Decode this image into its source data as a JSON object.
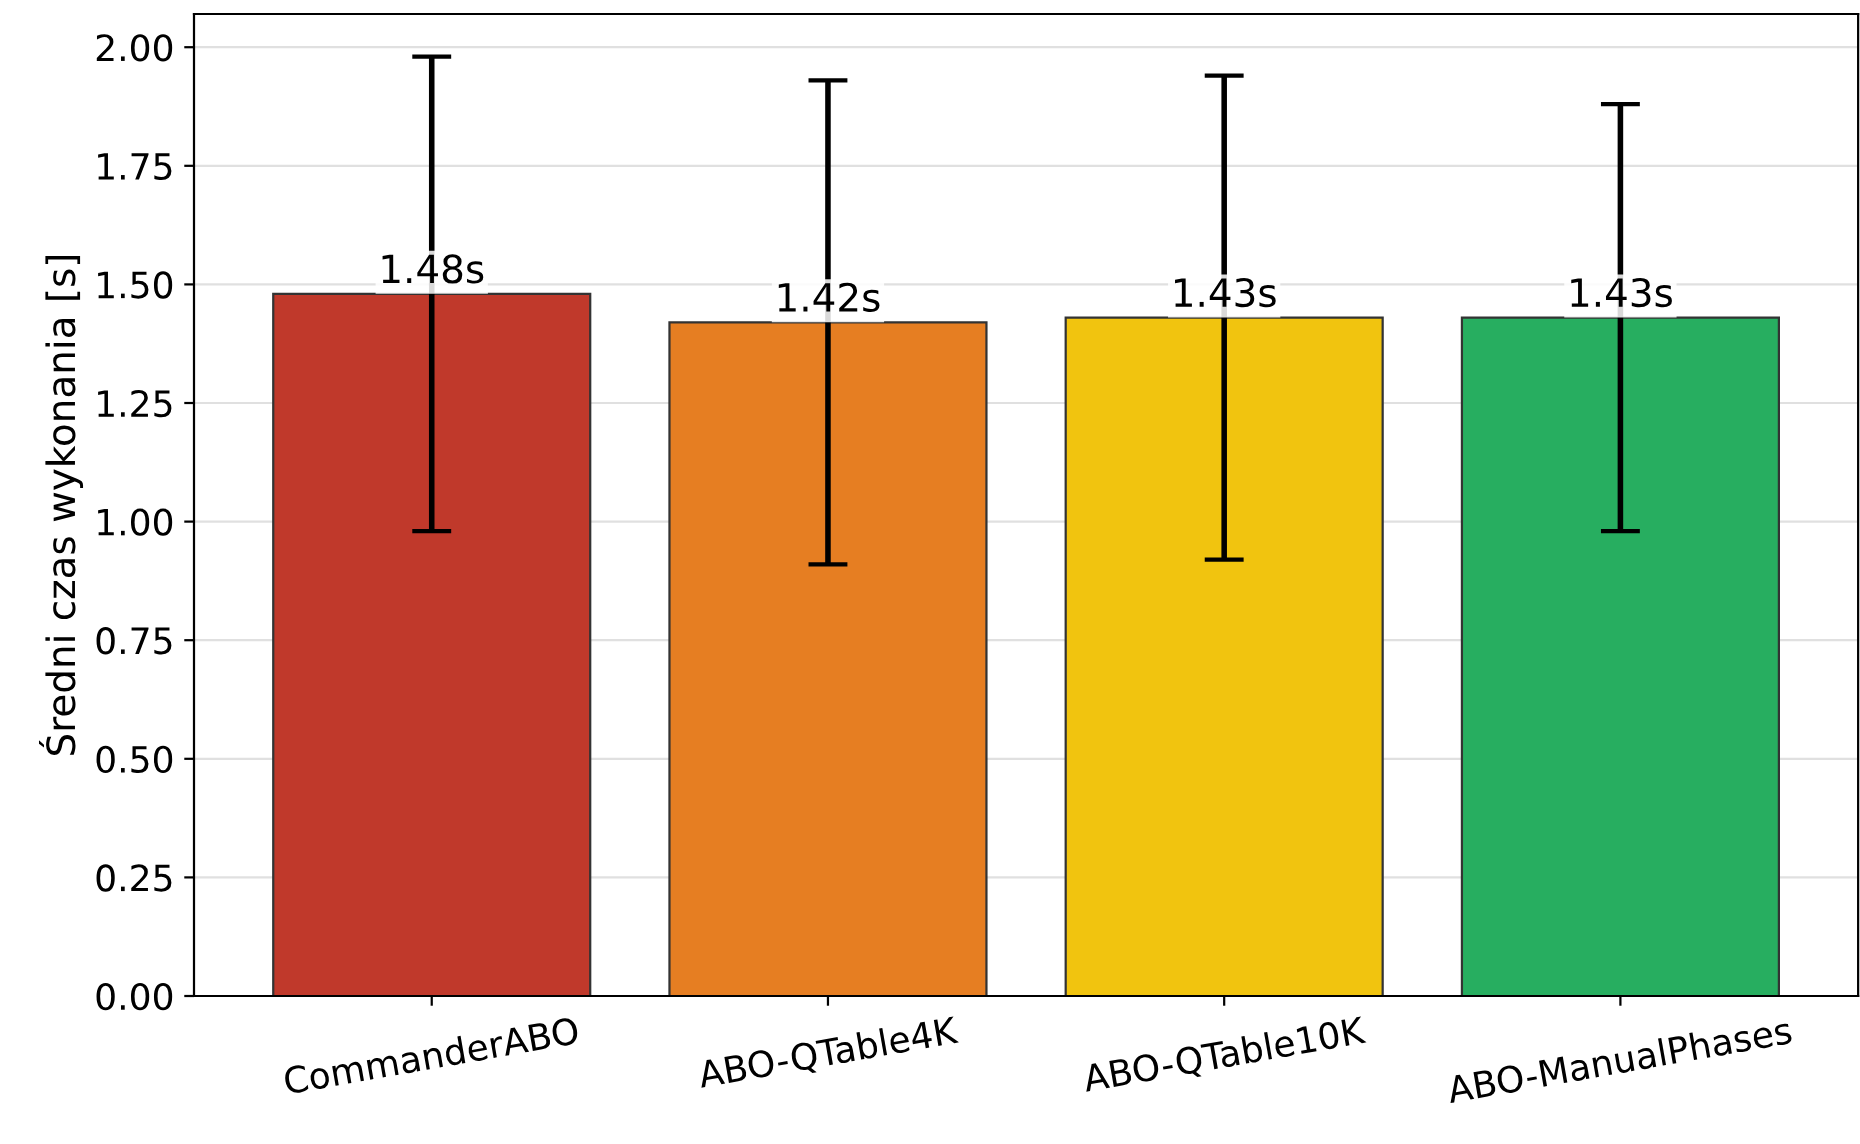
{
  "chart_data": {
    "type": "bar",
    "ylabel": "Średni czas wykonania [s]",
    "categories": [
      "CommanderABO",
      "ABO-QTable4K",
      "ABO-QTable10K",
      "ABO-ManualPhases"
    ],
    "values": [
      1.48,
      1.42,
      1.43,
      1.43
    ],
    "colors": [
      "#c0392b",
      "#e67e22",
      "#f1c40f",
      "#27ae60"
    ],
    "errors": [
      0.5,
      0.51,
      0.51,
      0.45
    ],
    "value_labels": [
      "1.48s",
      "1.42s",
      "1.43s",
      "1.43s"
    ],
    "ylim": [
      0,
      2.07
    ],
    "yticks": [
      {
        "value": 0,
        "label": "0.00"
      },
      {
        "value": 0.25,
        "label": "0.25"
      },
      {
        "value": 0.5,
        "label": "0.50"
      },
      {
        "value": 0.75,
        "label": "0.75"
      },
      {
        "value": 1,
        "label": "1.00"
      },
      {
        "value": 1.25,
        "label": "1.25"
      },
      {
        "value": 1.5,
        "label": "1.50"
      },
      {
        "value": 1.75,
        "label": "1.75"
      },
      {
        "value": 2,
        "label": "2.00"
      }
    ],
    "grid": "y"
  }
}
